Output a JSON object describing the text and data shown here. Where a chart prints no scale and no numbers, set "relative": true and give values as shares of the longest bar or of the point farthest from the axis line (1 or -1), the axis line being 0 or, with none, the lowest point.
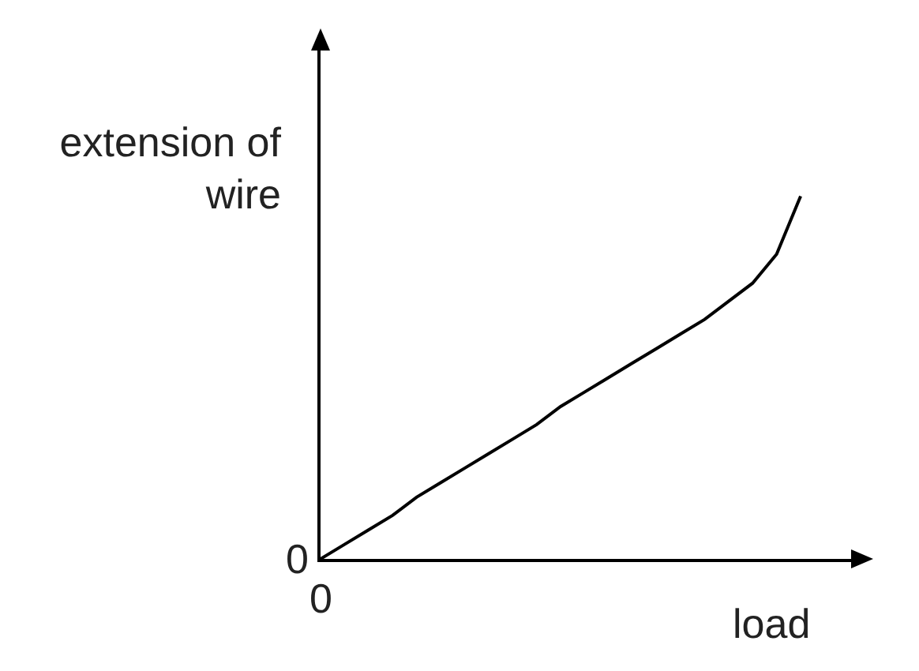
{
  "chart_data": {
    "type": "line",
    "relative": true,
    "xlabel": "load",
    "ylabel": "extension of wire",
    "categories": [
      null,
      null,
      null,
      null,
      null,
      null,
      null,
      null,
      null,
      null,
      null,
      null,
      null,
      null,
      null,
      null,
      null,
      null,
      null,
      null,
      null,
      null,
      null
    ],
    "series": [
      {
        "color": "#000000",
        "values": [
          0,
          0.04,
          0.08,
          0.12,
          0.17,
          0.21,
          0.25,
          0.29,
          0.33,
          0.37,
          0.42,
          0.46,
          0.5,
          0.54,
          0.58,
          0.62,
          0.66,
          0.71,
          0.76,
          0.84,
          1.0,
          null,
          null
        ]
      }
    ],
    "annotations": [
      "0",
      "0"
    ],
    "line_style": "solid"
  }
}
